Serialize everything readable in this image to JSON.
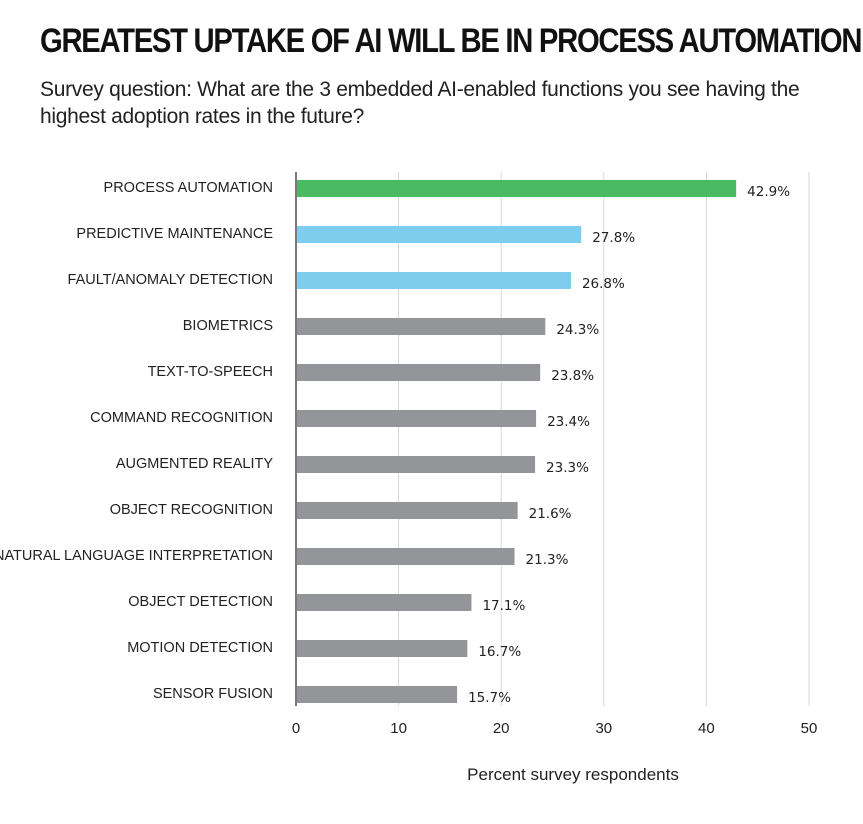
{
  "chart_data": {
    "type": "bar",
    "orientation": "horizontal",
    "title": "GREATEST UPTAKE OF AI WILL BE IN PROCESS AUTOMATION",
    "subtitle": "Survey question: What are the 3 embedded AI-enabled functions you see having the highest adoption rates in the future?",
    "xlabel": "Percent survey respondents",
    "ylabel": "",
    "xlim": [
      0,
      50
    ],
    "xticks": [
      "0",
      "10",
      "20",
      "30",
      "40",
      "50"
    ],
    "grid": true,
    "categories": [
      "PROCESS AUTOMATION",
      "PREDICTIVE MAINTENANCE",
      "FAULT/ANOMALY DETECTION",
      "BIOMETRICS",
      "TEXT-TO-SPEECH",
      "COMMAND RECOGNITION",
      "AUGMENTED REALITY",
      "OBJECT RECOGNITION",
      "NATURAL LANGUAGE INTERPRETATION",
      "OBJECT DETECTION",
      "MOTION DETECTION",
      "SENSOR FUSION"
    ],
    "values": [
      42.9,
      27.8,
      26.8,
      24.3,
      23.8,
      23.4,
      23.3,
      21.6,
      21.3,
      17.1,
      16.7,
      15.7
    ],
    "value_labels": [
      "42.9%",
      "27.8%",
      "26.8%",
      "24.3%",
      "23.8%",
      "23.4%",
      "23.3%",
      "21.6%",
      "21.3%",
      "17.1%",
      "16.7%",
      "15.7%"
    ],
    "bar_colors": [
      "#4cb963",
      "#7fcdee",
      "#7fcdee",
      "#939598",
      "#939598",
      "#939598",
      "#939598",
      "#939598",
      "#939598",
      "#939598",
      "#939598",
      "#939598"
    ],
    "grid_color": "#d9d9d9",
    "axis_color": "#333333"
  }
}
